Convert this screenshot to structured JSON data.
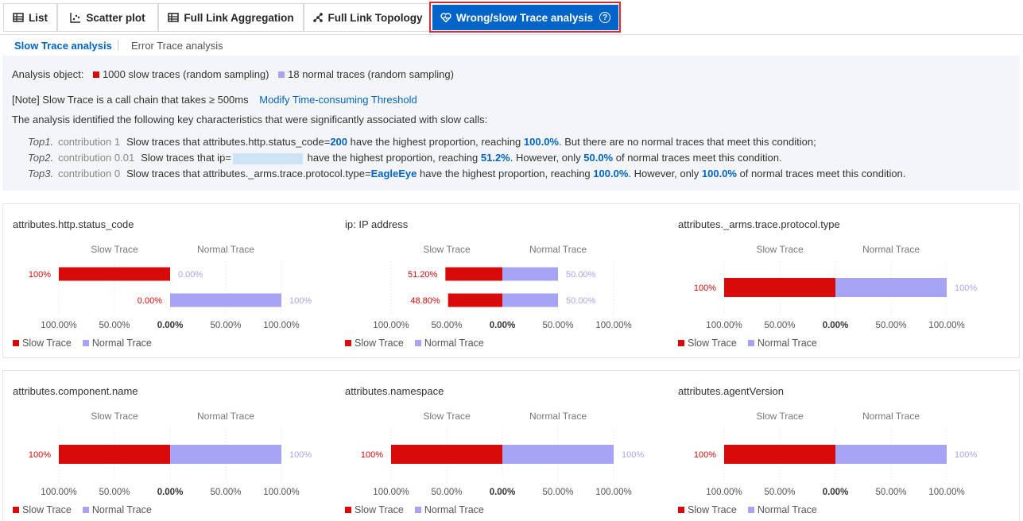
{
  "tabs": [
    {
      "label": "List",
      "icon": "table-icon"
    },
    {
      "label": "Scatter plot",
      "icon": "scatter-icon"
    },
    {
      "label": "Full Link Aggregation",
      "icon": "table-icon"
    },
    {
      "label": "Full Link Topology",
      "icon": "topology-icon"
    },
    {
      "label": "Wrong/slow Trace analysis",
      "icon": "heart-pulse-icon"
    }
  ],
  "subtabs": {
    "active": "Slow Trace analysis",
    "inactive": "Error Trace analysis"
  },
  "summary": {
    "object_label": "Analysis object:",
    "slow_label": "1000 slow traces (random sampling)",
    "normal_label": "18 normal traces (random sampling)",
    "note": "[Note] Slow Trace is a call chain that takes ≥ 500ms",
    "modify_link": "Modify Time-consuming Threshold",
    "intro": "The analysis identified the following key characteristics that were significantly associated with slow calls:",
    "tops": [
      {
        "tag": "Top1.",
        "contribution": "contribution 1",
        "pre": "Slow traces that attributes.http.status_code=",
        "value": "200",
        "mid": " have the highest proportion, reaching ",
        "pct1": "100.0%",
        "post": ". But there are no normal traces that meet this condition;"
      },
      {
        "tag": "Top2.",
        "contribution": "contribution 0.01",
        "pre": "Slow traces that ip=",
        "mid": " have the highest proportion, reaching ",
        "pct1": "51.2%",
        "mid2": ". However, only ",
        "pct2": "50.0%",
        "post": " of normal traces meet this condition."
      },
      {
        "tag": "Top3.",
        "contribution": "contribution 0",
        "pre": "Slow traces that attributes._arms.trace.protocol.type=",
        "value": "EagleEye",
        "mid": " have the highest proportion, reaching ",
        "pct1": "100.0%",
        "mid2": ". However, only ",
        "pct2": "100.0%",
        "post": " of normal traces meet this condition."
      }
    ]
  },
  "colors": {
    "slow": "#d90a0a",
    "normal": "#a8a4f5",
    "accent": "#0064c8"
  },
  "legend": {
    "slow": "Slow Trace",
    "normal": "Normal Trace"
  },
  "chart_data": [
    {
      "type": "bar",
      "title": "attributes.http.status_code",
      "side_titles": [
        "Slow Trace",
        "Normal Trace"
      ],
      "rows": [
        {
          "slow": 100,
          "normal": 0,
          "slow_label": "100%",
          "normal_label": "0.00%"
        },
        {
          "slow": 0,
          "normal": 100,
          "slow_label": "0.00%",
          "normal_label": "100%"
        }
      ],
      "xticks": [
        "100.00%",
        "50.00%",
        "0.00%",
        "50.00%",
        "100.00%"
      ],
      "xlim": [
        -100,
        100
      ]
    },
    {
      "type": "bar",
      "title": "ip: IP address",
      "side_titles": [
        "Slow Trace",
        "Normal Trace"
      ],
      "rows": [
        {
          "slow": 51.2,
          "normal": 50,
          "slow_label": "51.20%",
          "normal_label": "50.00%"
        },
        {
          "slow": 48.8,
          "normal": 50,
          "slow_label": "48.80%",
          "normal_label": "50.00%"
        }
      ],
      "xticks": [
        "100.00%",
        "50.00%",
        "0.00%",
        "50.00%",
        "100.00%"
      ],
      "xlim": [
        -100,
        100
      ]
    },
    {
      "type": "bar",
      "title": "attributes._arms.trace.protocol.type",
      "side_titles": [
        "Slow Trace",
        "Normal Trace"
      ],
      "rows": [
        {
          "slow": 100,
          "normal": 100,
          "slow_label": "100%",
          "normal_label": "100%"
        }
      ],
      "xticks": [
        "100.00%",
        "50.00%",
        "0.00%",
        "50.00%",
        "100.00%"
      ],
      "xlim": [
        -100,
        100
      ]
    },
    {
      "type": "bar",
      "title": "attributes.component.name",
      "side_titles": [
        "Slow Trace",
        "Normal Trace"
      ],
      "rows": [
        {
          "slow": 100,
          "normal": 100,
          "slow_label": "100%",
          "normal_label": "100%"
        }
      ],
      "xticks": [
        "100.00%",
        "50.00%",
        "0.00%",
        "50.00%",
        "100.00%"
      ],
      "xlim": [
        -100,
        100
      ]
    },
    {
      "type": "bar",
      "title": "attributes.namespace",
      "side_titles": [
        "Slow Trace",
        "Normal Trace"
      ],
      "rows": [
        {
          "slow": 100,
          "normal": 100,
          "slow_label": "100%",
          "normal_label": "100%"
        }
      ],
      "xticks": [
        "100.00%",
        "50.00%",
        "0.00%",
        "50.00%",
        "100.00%"
      ],
      "xlim": [
        -100,
        100
      ]
    },
    {
      "type": "bar",
      "title": "attributes.agentVersion",
      "side_titles": [
        "Slow Trace",
        "Normal Trace"
      ],
      "rows": [
        {
          "slow": 100,
          "normal": 100,
          "slow_label": "100%",
          "normal_label": "100%"
        }
      ],
      "xticks": [
        "100.00%",
        "50.00%",
        "0.00%",
        "50.00%",
        "100.00%"
      ],
      "xlim": [
        -100,
        100
      ]
    }
  ]
}
